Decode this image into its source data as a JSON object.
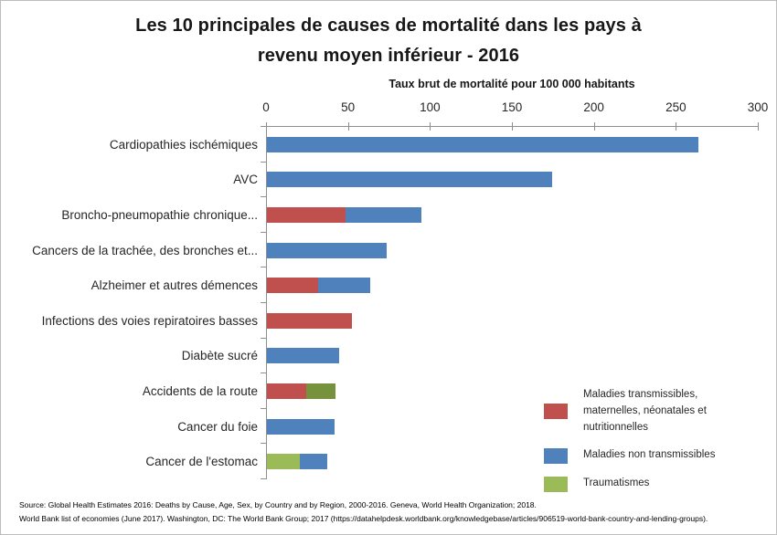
{
  "chart_data": {
    "type": "bar",
    "orientation": "horizontal",
    "stacked": true,
    "title": "Les 10 principales de causes de mortalité dans les pays à revenu moyen inférieur - 2016",
    "title_lines": [
      "Les 10 principales de causes de mortalité dans les pays à",
      "revenu moyen inférieur - 2016"
    ],
    "xlabel": "Taux brut de mortalité pour 100 000 habitants",
    "xlim": [
      0,
      300
    ],
    "xticks": [
      0,
      50,
      100,
      150,
      200,
      250,
      300
    ],
    "grid": false,
    "legend_position": "bottom-right",
    "colors": {
      "red": "#C0504D",
      "blue": "#4F81BD",
      "green": "#9BBB59",
      "olive": "#76923C",
      "axis": "#8E8E8E"
    },
    "categories": [
      "Cardiopathies ischémiques",
      "AVC",
      "Broncho-pneumopathie chronique...",
      "Cancers de la trachée, des bronches et...",
      "Alzheimer et autres démences",
      "Infections des voies repiratoires basses",
      "Diabète sucré",
      "Accidents de la route",
      "Cancer du foie",
      "Cancer de l'estomac"
    ],
    "series": [
      {
        "name": "Maladies transmissibles, maternelles, néonatales et nutritionnelles",
        "color": "red",
        "values": [
          0,
          0,
          48,
          0,
          31,
          52,
          0,
          24,
          0,
          0
        ]
      },
      {
        "name": "Maladies non transmissibles",
        "color": "blue",
        "values": [
          263,
          174,
          46,
          73,
          32,
          0,
          44,
          0,
          41,
          17
        ]
      },
      {
        "name": "Traumatismes",
        "color": "green",
        "values": [
          0,
          0,
          0,
          0,
          0,
          0,
          0,
          18,
          0,
          20
        ]
      }
    ],
    "rows": [
      {
        "label": "Cardiopathies ischémiques",
        "segments": [
          {
            "series": "Maladies non transmissibles",
            "color": "blue",
            "value": 263
          }
        ]
      },
      {
        "label": "AVC",
        "segments": [
          {
            "series": "Maladies non transmissibles",
            "color": "blue",
            "value": 174
          }
        ]
      },
      {
        "label": "Broncho-pneumopathie chronique...",
        "segments": [
          {
            "series": "Maladies transmissibles, maternelles, néonatales et nutritionnelles",
            "color": "red",
            "value": 48
          },
          {
            "series": "Maladies non transmissibles",
            "color": "blue",
            "value": 46
          }
        ]
      },
      {
        "label": "Cancers de la trachée, des bronches et...",
        "segments": [
          {
            "series": "Maladies non transmissibles",
            "color": "blue",
            "value": 73
          }
        ]
      },
      {
        "label": "Alzheimer et autres démences",
        "segments": [
          {
            "series": "Maladies transmissibles, maternelles, néonatales et nutritionnelles",
            "color": "red",
            "value": 31
          },
          {
            "series": "Maladies non transmissibles",
            "color": "blue",
            "value": 32
          }
        ]
      },
      {
        "label": "Infections des voies repiratoires basses",
        "segments": [
          {
            "series": "Maladies transmissibles, maternelles, néonatales et nutritionnelles",
            "color": "red",
            "value": 52
          }
        ]
      },
      {
        "label": "Diabète sucré",
        "segments": [
          {
            "series": "Maladies non transmissibles",
            "color": "blue",
            "value": 44
          }
        ]
      },
      {
        "label": "Accidents de la route",
        "segments": [
          {
            "series": "Maladies transmissibles, maternelles, néonatales et nutritionnelles",
            "color": "red",
            "value": 24
          },
          {
            "series": "Traumatismes",
            "color": "olive",
            "value": 18
          }
        ]
      },
      {
        "label": "Cancer du foie",
        "segments": [
          {
            "series": "Maladies non transmissibles",
            "color": "blue",
            "value": 41
          }
        ]
      },
      {
        "label": "Cancer de l'estomac",
        "segments": [
          {
            "series": "Traumatismes",
            "color": "green",
            "value": 20
          },
          {
            "series": "Maladies non transmissibles",
            "color": "blue",
            "value": 17
          }
        ]
      }
    ],
    "legend": [
      {
        "label": "Maladies transmissibles, maternelles, néonatales et nutritionnelles",
        "lines": [
          "Maladies transmissibles,",
          "maternelles, néonatales et",
          "nutritionnelles"
        ],
        "color": "red"
      },
      {
        "label": "Maladies non transmissibles",
        "lines": [
          "Maladies non transmissibles"
        ],
        "color": "blue"
      },
      {
        "label": "Traumatismes",
        "lines": [
          "Traumatismes"
        ],
        "color": "green"
      }
    ]
  },
  "source": {
    "line1": "Source: Global Health Estimates 2016: Deaths by Cause, Age, Sex, by Country and by Region, 2000-2016. Geneva, World Health Organization; 2018.",
    "line2": "World Bank list of economies (June 2017). Washington, DC: The World Bank Group;  2017 (https://datahelpdesk.worldbank.org/knowledgebase/articles/906519-world-bank-country-and-lending-groups)."
  }
}
